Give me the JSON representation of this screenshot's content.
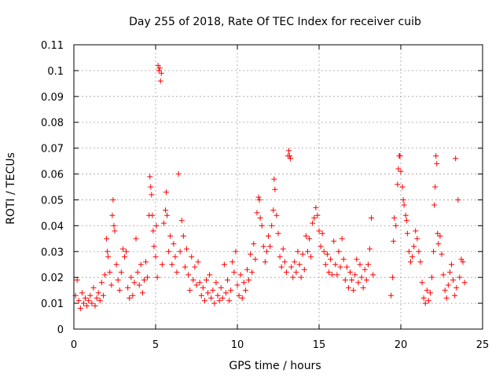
{
  "chart_data": {
    "type": "scatter",
    "title": "Day 255 of 2018, Rate Of TEC Index for receiver cuib",
    "xlabel": "GPS time / hours",
    "ylabel": "ROTI / TECUs",
    "xlim": [
      0,
      25
    ],
    "ylim": [
      0,
      0.11
    ],
    "xticks": [
      0,
      5,
      10,
      15,
      20,
      25
    ],
    "xtick_labels": [
      "0",
      "5",
      "10",
      "15",
      "20",
      "25"
    ],
    "yticks": [
      0,
      0.01,
      0.02,
      0.03,
      0.04,
      0.05,
      0.06,
      0.07,
      0.08,
      0.09,
      0.1,
      0.11
    ],
    "ytick_labels": [
      "0",
      "0.01",
      "0.02",
      "0.03",
      "0.04",
      "0.05",
      "0.06",
      "0.07",
      "0.08",
      "0.09",
      "0.1",
      "0.11"
    ],
    "grid": true,
    "marker": "+",
    "color": "#ff0000",
    "series": [
      {
        "name": "ROTI",
        "points": [
          [
            0.1,
            0.013
          ],
          [
            0.2,
            0.019
          ],
          [
            0.3,
            0.011
          ],
          [
            0.4,
            0.008
          ],
          [
            0.5,
            0.014
          ],
          [
            0.6,
            0.01
          ],
          [
            0.7,
            0.012
          ],
          [
            0.8,
            0.009
          ],
          [
            0.9,
            0.011
          ],
          [
            1.0,
            0.013
          ],
          [
            1.1,
            0.01
          ],
          [
            1.2,
            0.016
          ],
          [
            1.3,
            0.009
          ],
          [
            1.4,
            0.012
          ],
          [
            1.5,
            0.014
          ],
          [
            1.6,
            0.011
          ],
          [
            1.7,
            0.018
          ],
          [
            1.8,
            0.013
          ],
          [
            1.9,
            0.021
          ],
          [
            2.0,
            0.035
          ],
          [
            2.05,
            0.03
          ],
          [
            2.1,
            0.028
          ],
          [
            2.2,
            0.022
          ],
          [
            2.3,
            0.017
          ],
          [
            2.35,
            0.044
          ],
          [
            2.4,
            0.05
          ],
          [
            2.45,
            0.04
          ],
          [
            2.5,
            0.038
          ],
          [
            2.6,
            0.025
          ],
          [
            2.7,
            0.019
          ],
          [
            2.8,
            0.015
          ],
          [
            2.9,
            0.022
          ],
          [
            3.0,
            0.031
          ],
          [
            3.1,
            0.028
          ],
          [
            3.2,
            0.03
          ],
          [
            3.3,
            0.016
          ],
          [
            3.4,
            0.012
          ],
          [
            3.5,
            0.02
          ],
          [
            3.6,
            0.013
          ],
          [
            3.7,
            0.018
          ],
          [
            3.8,
            0.035
          ],
          [
            3.9,
            0.022
          ],
          [
            4.0,
            0.017
          ],
          [
            4.1,
            0.025
          ],
          [
            4.2,
            0.014
          ],
          [
            4.3,
            0.019
          ],
          [
            4.4,
            0.026
          ],
          [
            4.5,
            0.02
          ],
          [
            4.6,
            0.044
          ],
          [
            4.65,
            0.059
          ],
          [
            4.7,
            0.055
          ],
          [
            4.75,
            0.052
          ],
          [
            4.8,
            0.044
          ],
          [
            4.85,
            0.038
          ],
          [
            4.9,
            0.032
          ],
          [
            5.0,
            0.028
          ],
          [
            5.05,
            0.04
          ],
          [
            5.1,
            0.02
          ],
          [
            5.15,
            0.102
          ],
          [
            5.2,
            0.1
          ],
          [
            5.25,
            0.101
          ],
          [
            5.3,
            0.096
          ],
          [
            5.35,
            0.099
          ],
          [
            5.4,
            0.025
          ],
          [
            5.5,
            0.041
          ],
          [
            5.6,
            0.046
          ],
          [
            5.65,
            0.053
          ],
          [
            5.7,
            0.044
          ],
          [
            5.8,
            0.03
          ],
          [
            5.9,
            0.036
          ],
          [
            6.0,
            0.025
          ],
          [
            6.1,
            0.033
          ],
          [
            6.2,
            0.028
          ],
          [
            6.3,
            0.022
          ],
          [
            6.4,
            0.06
          ],
          [
            6.5,
            0.03
          ],
          [
            6.6,
            0.042
          ],
          [
            6.7,
            0.036
          ],
          [
            6.8,
            0.024
          ],
          [
            6.9,
            0.031
          ],
          [
            7.0,
            0.021
          ],
          [
            7.1,
            0.015
          ],
          [
            7.2,
            0.028
          ],
          [
            7.3,
            0.019
          ],
          [
            7.4,
            0.024
          ],
          [
            7.5,
            0.017
          ],
          [
            7.6,
            0.026
          ],
          [
            7.7,
            0.018
          ],
          [
            7.8,
            0.013
          ],
          [
            7.9,
            0.016
          ],
          [
            8.0,
            0.011
          ],
          [
            8.1,
            0.019
          ],
          [
            8.2,
            0.014
          ],
          [
            8.3,
            0.021
          ],
          [
            8.4,
            0.012
          ],
          [
            8.5,
            0.015
          ],
          [
            8.6,
            0.01
          ],
          [
            8.7,
            0.018
          ],
          [
            8.8,
            0.013
          ],
          [
            8.9,
            0.011
          ],
          [
            9.0,
            0.016
          ],
          [
            9.1,
            0.012
          ],
          [
            9.2,
            0.025
          ],
          [
            9.3,
            0.014
          ],
          [
            9.4,
            0.019
          ],
          [
            9.5,
            0.011
          ],
          [
            9.6,
            0.015
          ],
          [
            9.7,
            0.026
          ],
          [
            9.8,
            0.022
          ],
          [
            9.9,
            0.03
          ],
          [
            10.0,
            0.017
          ],
          [
            10.1,
            0.013
          ],
          [
            10.2,
            0.021
          ],
          [
            10.3,
            0.012
          ],
          [
            10.4,
            0.018
          ],
          [
            10.5,
            0.015
          ],
          [
            10.6,
            0.023
          ],
          [
            10.7,
            0.019
          ],
          [
            10.8,
            0.029
          ],
          [
            10.9,
            0.022
          ],
          [
            11.0,
            0.033
          ],
          [
            11.1,
            0.027
          ],
          [
            11.2,
            0.045
          ],
          [
            11.3,
            0.051
          ],
          [
            11.35,
            0.05
          ],
          [
            11.4,
            0.043
          ],
          [
            11.5,
            0.04
          ],
          [
            11.6,
            0.032
          ],
          [
            11.7,
            0.026
          ],
          [
            11.8,
            0.03
          ],
          [
            11.9,
            0.036
          ],
          [
            12.0,
            0.032
          ],
          [
            12.1,
            0.04
          ],
          [
            12.2,
            0.046
          ],
          [
            12.25,
            0.058
          ],
          [
            12.3,
            0.054
          ],
          [
            12.4,
            0.044
          ],
          [
            12.5,
            0.037
          ],
          [
            12.6,
            0.028
          ],
          [
            12.7,
            0.024
          ],
          [
            12.8,
            0.031
          ],
          [
            12.9,
            0.026
          ],
          [
            13.0,
            0.022
          ],
          [
            13.1,
            0.067
          ],
          [
            13.15,
            0.069
          ],
          [
            13.2,
            0.067
          ],
          [
            13.25,
            0.066
          ],
          [
            13.3,
            0.024
          ],
          [
            13.4,
            0.02
          ],
          [
            13.5,
            0.026
          ],
          [
            13.6,
            0.022
          ],
          [
            13.7,
            0.03
          ],
          [
            13.8,
            0.025
          ],
          [
            13.9,
            0.02
          ],
          [
            14.0,
            0.029
          ],
          [
            14.1,
            0.023
          ],
          [
            14.2,
            0.036
          ],
          [
            14.3,
            0.03
          ],
          [
            14.4,
            0.035
          ],
          [
            14.5,
            0.028
          ],
          [
            14.6,
            0.041
          ],
          [
            14.7,
            0.043
          ],
          [
            14.8,
            0.047
          ],
          [
            14.9,
            0.044
          ],
          [
            15.0,
            0.038
          ],
          [
            15.1,
            0.032
          ],
          [
            15.2,
            0.037
          ],
          [
            15.3,
            0.03
          ],
          [
            15.4,
            0.025
          ],
          [
            15.5,
            0.029
          ],
          [
            15.6,
            0.022
          ],
          [
            15.7,
            0.027
          ],
          [
            15.8,
            0.021
          ],
          [
            15.9,
            0.034
          ],
          [
            16.0,
            0.025
          ],
          [
            16.1,
            0.021
          ],
          [
            16.2,
            0.03
          ],
          [
            16.3,
            0.024
          ],
          [
            16.4,
            0.035
          ],
          [
            16.5,
            0.027
          ],
          [
            16.6,
            0.019
          ],
          [
            16.7,
            0.024
          ],
          [
            16.8,
            0.016
          ],
          [
            16.9,
            0.022
          ],
          [
            17.0,
            0.019
          ],
          [
            17.1,
            0.015
          ],
          [
            17.2,
            0.021
          ],
          [
            17.3,
            0.027
          ],
          [
            17.4,
            0.018
          ],
          [
            17.5,
            0.025
          ],
          [
            17.6,
            0.02
          ],
          [
            17.7,
            0.016
          ],
          [
            17.8,
            0.023
          ],
          [
            17.9,
            0.019
          ],
          [
            18.0,
            0.025
          ],
          [
            18.1,
            0.031
          ],
          [
            18.2,
            0.043
          ],
          [
            18.3,
            0.021
          ],
          [
            19.4,
            0.013
          ],
          [
            19.5,
            0.02
          ],
          [
            19.55,
            0.034
          ],
          [
            19.6,
            0.043
          ],
          [
            19.7,
            0.04
          ],
          [
            19.8,
            0.056
          ],
          [
            19.85,
            0.062
          ],
          [
            19.9,
            0.067
          ],
          [
            19.95,
            0.067
          ],
          [
            20.0,
            0.061
          ],
          [
            20.1,
            0.055
          ],
          [
            20.15,
            0.05
          ],
          [
            20.2,
            0.048
          ],
          [
            20.3,
            0.044
          ],
          [
            20.35,
            0.042
          ],
          [
            20.4,
            0.037
          ],
          [
            20.5,
            0.03
          ],
          [
            20.6,
            0.026
          ],
          [
            20.7,
            0.028
          ],
          [
            20.8,
            0.032
          ],
          [
            20.9,
            0.038
          ],
          [
            21.0,
            0.035
          ],
          [
            21.1,
            0.03
          ],
          [
            21.2,
            0.026
          ],
          [
            21.3,
            0.018
          ],
          [
            21.4,
            0.012
          ],
          [
            21.5,
            0.01
          ],
          [
            21.6,
            0.015
          ],
          [
            21.7,
            0.011
          ],
          [
            21.8,
            0.014
          ],
          [
            21.9,
            0.02
          ],
          [
            22.0,
            0.03
          ],
          [
            22.05,
            0.048
          ],
          [
            22.1,
            0.055
          ],
          [
            22.15,
            0.067
          ],
          [
            22.2,
            0.064
          ],
          [
            22.25,
            0.037
          ],
          [
            22.3,
            0.033
          ],
          [
            22.4,
            0.036
          ],
          [
            22.5,
            0.029
          ],
          [
            22.6,
            0.021
          ],
          [
            22.7,
            0.015
          ],
          [
            22.8,
            0.012
          ],
          [
            22.9,
            0.017
          ],
          [
            23.0,
            0.022
          ],
          [
            23.1,
            0.025
          ],
          [
            23.2,
            0.019
          ],
          [
            23.3,
            0.013
          ],
          [
            23.35,
            0.066
          ],
          [
            23.4,
            0.016
          ],
          [
            23.5,
            0.05
          ],
          [
            23.6,
            0.02
          ],
          [
            23.7,
            0.027
          ],
          [
            23.8,
            0.026
          ],
          [
            23.9,
            0.018
          ]
        ]
      }
    ]
  }
}
